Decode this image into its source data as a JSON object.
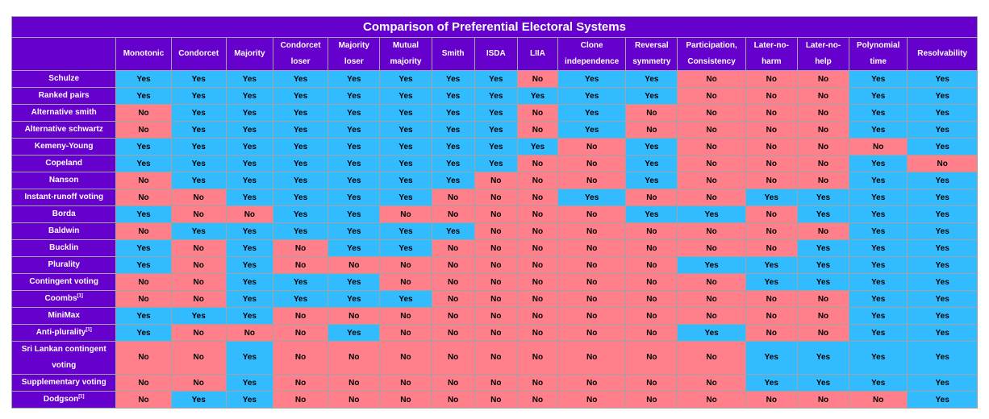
{
  "title": "Comparison of Preferential Electoral Systems",
  "columns": [
    "Monotonic",
    "Condorcet",
    "Majority",
    "Condorcet loser",
    "Majority loser",
    "Mutual majority",
    "Smith",
    "ISDA",
    "LIIA",
    "Clone independence",
    "Reversal symmetry",
    "Participation, Consistency",
    "Later-no-harm",
    "Later-no-help",
    "Polynomial time",
    "Resolvability"
  ],
  "colors": {
    "header_bg": "#6600cc",
    "yes_bg": "#33bbff",
    "no_bg": "#ff7f8a"
  },
  "rows": [
    {
      "name": "Schulze",
      "cells": [
        "Yes",
        "Yes",
        "Yes",
        "Yes",
        "Yes",
        "Yes",
        "Yes",
        "Yes",
        "No",
        "Yes",
        "Yes",
        "No",
        "No",
        "No",
        "Yes",
        "Yes"
      ]
    },
    {
      "name": "Ranked pairs",
      "cells": [
        "Yes",
        "Yes",
        "Yes",
        "Yes",
        "Yes",
        "Yes",
        "Yes",
        "Yes",
        "Yes",
        "Yes",
        "Yes",
        "No",
        "No",
        "No",
        "Yes",
        "Yes"
      ]
    },
    {
      "name": "Alternative smith",
      "cells": [
        "No",
        "Yes",
        "Yes",
        "Yes",
        "Yes",
        "Yes",
        "Yes",
        "Yes",
        "No",
        "Yes",
        "No",
        "No",
        "No",
        "No",
        "Yes",
        "Yes"
      ]
    },
    {
      "name": "Alternative schwartz",
      "cells": [
        "No",
        "Yes",
        "Yes",
        "Yes",
        "Yes",
        "Yes",
        "Yes",
        "Yes",
        "No",
        "Yes",
        "No",
        "No",
        "No",
        "No",
        "Yes",
        "Yes"
      ]
    },
    {
      "name": "Kemeny-Young",
      "cells": [
        "Yes",
        "Yes",
        "Yes",
        "Yes",
        "Yes",
        "Yes",
        "Yes",
        "Yes",
        "Yes",
        "No",
        "Yes",
        "No",
        "No",
        "No",
        "No",
        "Yes"
      ]
    },
    {
      "name": "Copeland",
      "cells": [
        "Yes",
        "Yes",
        "Yes",
        "Yes",
        "Yes",
        "Yes",
        "Yes",
        "Yes",
        "No",
        "No",
        "Yes",
        "No",
        "No",
        "No",
        "Yes",
        "No"
      ]
    },
    {
      "name": "Nanson",
      "cells": [
        "No",
        "Yes",
        "Yes",
        "Yes",
        "Yes",
        "Yes",
        "Yes",
        "No",
        "No",
        "No",
        "Yes",
        "No",
        "No",
        "No",
        "Yes",
        "Yes"
      ]
    },
    {
      "name": "Instant-runoff voting",
      "cells": [
        "No",
        "No",
        "Yes",
        "Yes",
        "Yes",
        "Yes",
        "No",
        "No",
        "No",
        "Yes",
        "No",
        "No",
        "Yes",
        "Yes",
        "Yes",
        "Yes"
      ]
    },
    {
      "name": "Borda",
      "cells": [
        "Yes",
        "No",
        "No",
        "Yes",
        "Yes",
        "No",
        "No",
        "No",
        "No",
        "No",
        "Yes",
        "Yes",
        "No",
        "Yes",
        "Yes",
        "Yes"
      ]
    },
    {
      "name": "Baldwin",
      "cells": [
        "No",
        "Yes",
        "Yes",
        "Yes",
        "Yes",
        "Yes",
        "Yes",
        "No",
        "No",
        "No",
        "No",
        "No",
        "No",
        "No",
        "Yes",
        "Yes"
      ]
    },
    {
      "name": "Bucklin",
      "cells": [
        "Yes",
        "No",
        "Yes",
        "No",
        "Yes",
        "Yes",
        "No",
        "No",
        "No",
        "No",
        "No",
        "No",
        "No",
        "Yes",
        "Yes",
        "Yes"
      ]
    },
    {
      "name": "Plurality",
      "cells": [
        "Yes",
        "No",
        "Yes",
        "No",
        "No",
        "No",
        "No",
        "No",
        "No",
        "No",
        "No",
        "Yes",
        "Yes",
        "Yes",
        "Yes",
        "Yes"
      ]
    },
    {
      "name": "Contingent voting",
      "cells": [
        "No",
        "No",
        "Yes",
        "Yes",
        "Yes",
        "No",
        "No",
        "No",
        "No",
        "No",
        "No",
        "No",
        "Yes",
        "Yes",
        "Yes",
        "Yes"
      ]
    },
    {
      "name": "Coombs",
      "sup": "[1]",
      "cells": [
        "No",
        "No",
        "Yes",
        "Yes",
        "Yes",
        "Yes",
        "No",
        "No",
        "No",
        "No",
        "No",
        "No",
        "No",
        "No",
        "Yes",
        "Yes"
      ]
    },
    {
      "name": "MiniMax",
      "cells": [
        "Yes",
        "Yes",
        "Yes",
        "No",
        "No",
        "No",
        "No",
        "No",
        "No",
        "No",
        "No",
        "No",
        "No",
        "No",
        "Yes",
        "Yes"
      ]
    },
    {
      "name": "Anti-plurality",
      "sup": "[1]",
      "cells": [
        "Yes",
        "No",
        "No",
        "No",
        "Yes",
        "No",
        "No",
        "No",
        "No",
        "No",
        "No",
        "Yes",
        "No",
        "No",
        "Yes",
        "Yes"
      ]
    },
    {
      "name": "Sri Lankan contingent voting",
      "tall": true,
      "cells": [
        "No",
        "No",
        "Yes",
        "No",
        "No",
        "No",
        "No",
        "No",
        "No",
        "No",
        "No",
        "No",
        "Yes",
        "Yes",
        "Yes",
        "Yes"
      ]
    },
    {
      "name": "Supplementary voting",
      "cells": [
        "No",
        "No",
        "Yes",
        "No",
        "No",
        "No",
        "No",
        "No",
        "No",
        "No",
        "No",
        "No",
        "Yes",
        "Yes",
        "Yes",
        "Yes"
      ]
    },
    {
      "name": "Dodgson",
      "sup": "[1]",
      "cells": [
        "No",
        "Yes",
        "Yes",
        "No",
        "No",
        "No",
        "No",
        "No",
        "No",
        "No",
        "No",
        "No",
        "No",
        "No",
        "No",
        "Yes"
      ]
    }
  ]
}
